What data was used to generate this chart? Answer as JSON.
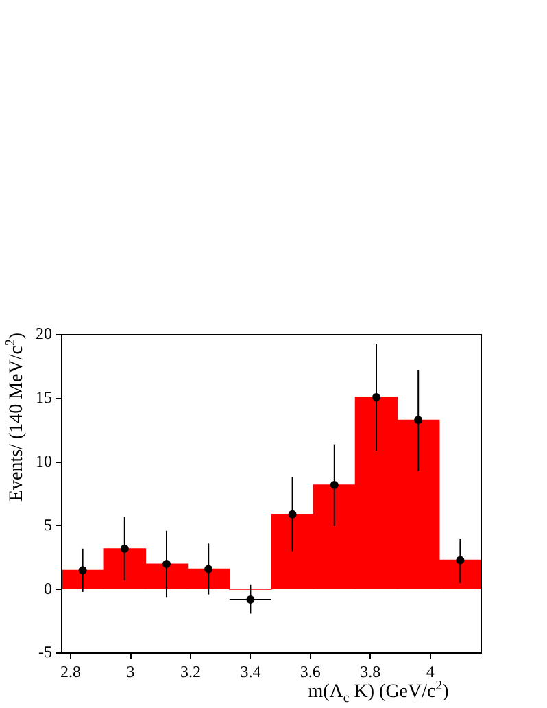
{
  "chart_data": {
    "type": "histogram",
    "xlabel": "m(Λ$_{c}$ K) (GeV/c$^{2}$)",
    "ylabel": "Events/ (140 MeV/c$^{2}$)",
    "xlim": [
      2.77,
      4.17
    ],
    "ylim": [
      -5,
      20
    ],
    "xticks": [
      2.8,
      3,
      3.2,
      3.4,
      3.6,
      3.8,
      4
    ],
    "yticks": [
      -5,
      0,
      5,
      10,
      15,
      20
    ],
    "grid": false,
    "marker": "circle",
    "series": [
      {
        "type": "histogram",
        "color": "#ff0000",
        "bins": [
          2.77,
          2.91,
          3.05,
          3.19,
          3.33,
          3.47,
          3.61,
          3.75,
          3.89,
          4.03,
          4.17
        ],
        "values": [
          1.5,
          3.2,
          2.0,
          1.6,
          0,
          5.9,
          8.2,
          15.1,
          13.3,
          2.3
        ]
      },
      {
        "type": "scatter",
        "color": "#000000",
        "x": [
          2.84,
          2.98,
          3.12,
          3.26,
          3.4,
          3.54,
          3.68,
          3.82,
          3.96,
          4.1
        ],
        "values": [
          1.5,
          3.2,
          2.0,
          1.6,
          -0.8,
          5.9,
          8.2,
          15.1,
          13.3,
          2.3
        ],
        "errors": [
          [
            -0.2,
            3.2
          ],
          [
            0.7,
            5.7
          ],
          [
            -0.6,
            4.6
          ],
          [
            -0.4,
            3.6
          ],
          [
            -1.9,
            0.4
          ],
          [
            3.0,
            8.8
          ],
          [
            5.0,
            11.4
          ],
          [
            10.9,
            19.3
          ],
          [
            9.3,
            17.2
          ],
          [
            0.5,
            4.0
          ]
        ],
        "xerrors": [
          null,
          null,
          null,
          null,
          0.07,
          null,
          null,
          null,
          null,
          null
        ]
      }
    ]
  }
}
